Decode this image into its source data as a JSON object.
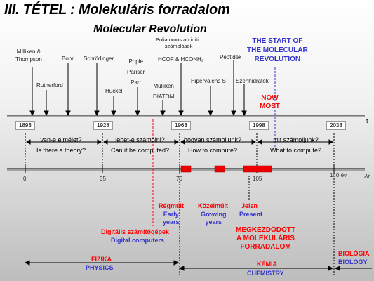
{
  "title": "III. TÉTEL : Molekuláris forradalom",
  "subtitle": "Molecular Revolution",
  "scientists": [
    {
      "text": "Milliken &\nThompson"
    },
    {
      "text": "Rutherford"
    },
    {
      "text": "Bohr"
    },
    {
      "text": "Schrödinger"
    },
    {
      "text": "Hückel"
    },
    {
      "text": "Pople\nPariser\nParr"
    },
    {
      "text": "Mulliken\nDIATOM"
    },
    {
      "text": "Poliatomos ab initio\nszámolások"
    },
    {
      "text": "HCOF & HCONH₂"
    },
    {
      "text": "Hipervalens S"
    },
    {
      "text": "Peptidek"
    },
    {
      "text": "Szénhidrátok"
    }
  ],
  "start_label_hu": "THE START OF\nTHE MOLECULAR\nREVOLUTION",
  "now_label": "NOW\nMOST",
  "t_label": "t",
  "years": [
    "1893",
    "1928",
    "1963",
    "1998",
    "2033"
  ],
  "questions": [
    "van-e elmélet?\nIs there a theory?",
    "lehet-e számolni?\nCan it be computed?",
    "hogyan számoljunk?\nHow to compute?",
    "mit számoljunk?\nWhat to compute?"
  ],
  "dt_ticks": [
    "0",
    "35",
    "70",
    "105",
    "140 év"
  ],
  "dt_label": "Δt",
  "periods": {
    "early": "Régmúlt",
    "early_en": "Early\nyears",
    "growing": "Közelmúlt",
    "growing_en": "Growing\nyears",
    "present": "Jelen",
    "present_en": "Present"
  },
  "digital_hu": "Digitális számítógépek",
  "digital_en": "Digital computers",
  "established": "MEGKEZDŐDÖTT\nA MOLEKULÁRIS\nFORRADALOM",
  "fields": {
    "physics_hu": "FIZIKA",
    "physics_en": "PHYSICS",
    "chem_hu": "KÉMIA",
    "chem_en": "CHEMISTRY",
    "bio_hu": "BIOLÓGIA",
    "bio_en": "BIOLOGY"
  },
  "colors": {
    "red": "#ff0000",
    "blue": "#3333cc",
    "bar_red": "#ee0000"
  }
}
